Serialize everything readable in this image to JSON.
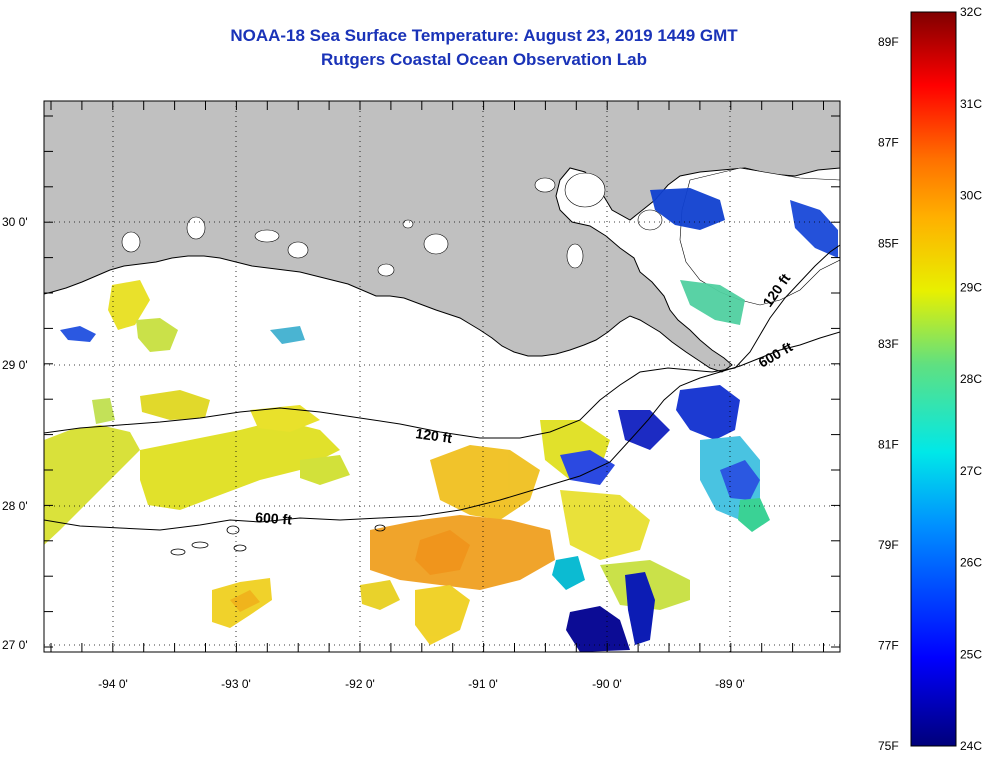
{
  "header": {
    "title_line1": "NOAA-18 Sea Surface Temperature:  August 23, 2019 1449 GMT",
    "title_line2": "Rutgers Coastal Ocean Observation Lab"
  },
  "map": {
    "region": "northern Gulf of Mexico / Louisiana coast",
    "lon_range": [
      -94.55,
      -88.0
    ],
    "lat_range": [
      26.95,
      30.9
    ],
    "lon_ticks": [
      "-94 0'",
      "-93 0'",
      "-92 0'",
      "-91 0'",
      "-90 0'",
      "-89 0'"
    ],
    "lat_ticks": [
      "30 0'",
      "29 0'",
      "28 0'",
      "27 0'"
    ],
    "land_color": "#c0c0c0",
    "contour_labels": {
      "c120_west": "120 ft",
      "c600_west": "600 ft",
      "c120_east": "120 ft",
      "c600_east": "600 ft"
    }
  },
  "colorbar": {
    "celsius_labels": [
      "32C",
      "31C",
      "30C",
      "29C",
      "28C",
      "27C",
      "26C",
      "25C",
      "24C"
    ],
    "fahrenheit_labels": [
      "89F",
      "87F",
      "85F",
      "83F",
      "81F",
      "79F",
      "77F",
      "75F"
    ],
    "celsius_range": [
      24,
      32
    ],
    "fahrenheit_range": [
      75,
      89.6
    ]
  },
  "colors": {
    "title": "#1a33b8",
    "cold": "#00008b",
    "mid": "#00e0e0",
    "warm": "#f0e000",
    "hot": "#800000"
  }
}
